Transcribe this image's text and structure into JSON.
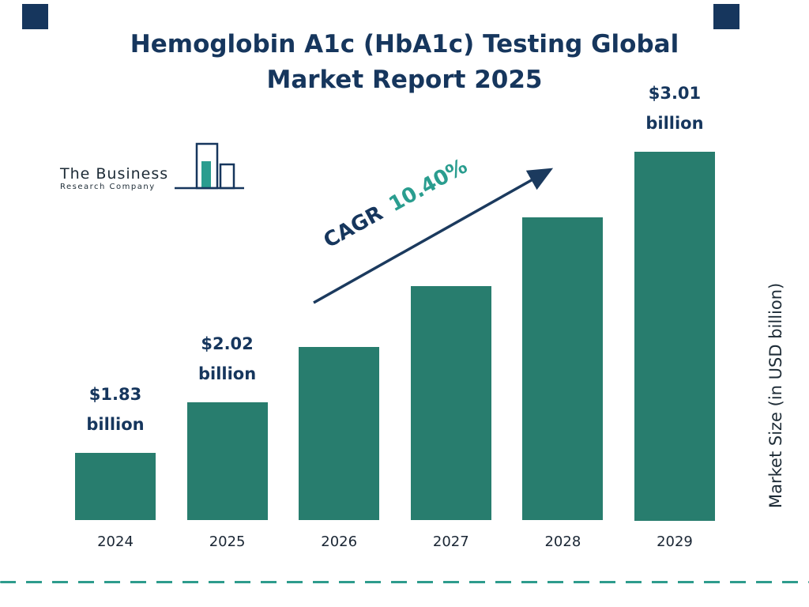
{
  "title": {
    "line1": "Hemoglobin A1c (HbA1c) Testing Global",
    "line2": "Market Report 2025"
  },
  "logo": {
    "line1": "The Business",
    "line2": "Research Company"
  },
  "cagr": {
    "prefix": "CAGR",
    "value": "10.40%"
  },
  "y_axis_label": "Market Size (in USD billion)",
  "colors": {
    "navy": "#16365d",
    "bar_teal": "#287d6e",
    "accent_teal": "#2a9d8f",
    "dash_teal": "#2e9c8d"
  },
  "chart_data": {
    "type": "bar",
    "title": "Hemoglobin A1c (HbA1c) Testing Global Market Report 2025",
    "xlabel": "",
    "ylabel": "Market Size (in USD billion)",
    "categories": [
      "2024",
      "2025",
      "2026",
      "2027",
      "2028",
      "2029"
    ],
    "values": [
      1.83,
      2.02,
      2.23,
      2.46,
      2.72,
      3.01
    ],
    "value_labels": [
      {
        "index": 0,
        "lines": [
          "$1.83",
          "billion"
        ]
      },
      {
        "index": 1,
        "lines": [
          "$2.02",
          "billion"
        ]
      },
      {
        "index": 5,
        "lines": [
          "$3.01",
          "billion"
        ]
      }
    ],
    "cagr": "10.40%",
    "bar_color": "#287d6e",
    "legend": "none",
    "grid": false,
    "baseline_starts_at_zero": false
  }
}
